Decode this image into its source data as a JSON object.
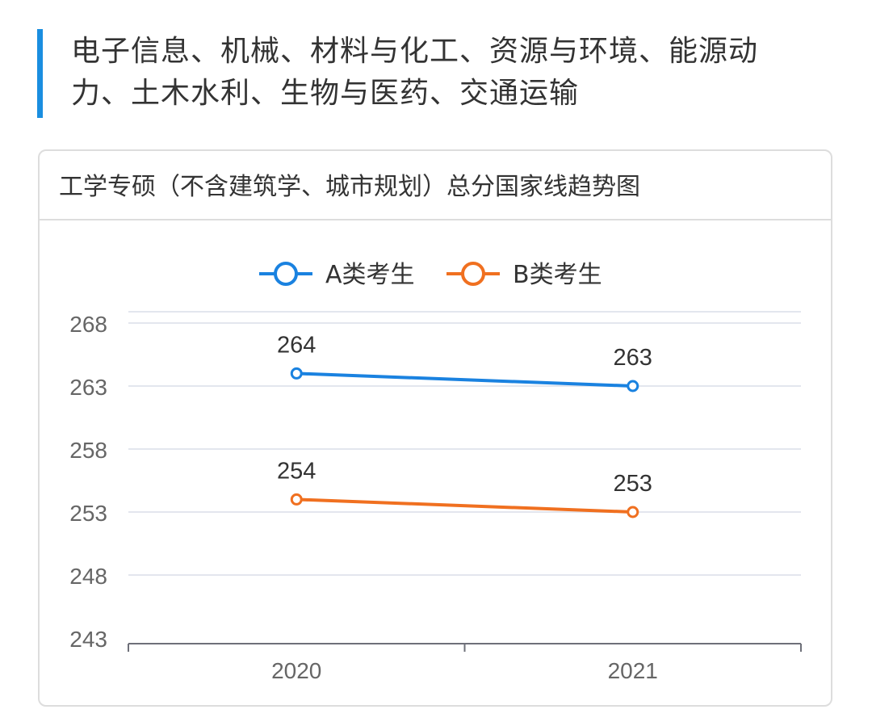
{
  "heading": {
    "text": "电子信息、机械、材料与化工、资源与环境、能源动力、土木水利、生物与医药、交通运输",
    "accent_color": "#1a8ee0"
  },
  "card": {
    "title": "工学专硕（不含建筑学、城市规划）总分国家线趋势图"
  },
  "chart_data": {
    "type": "line",
    "title": "工学专硕（不含建筑学、城市规划）总分国家线趋势图",
    "xlabel": "",
    "ylabel": "",
    "categories": [
      "2020",
      "2021"
    ],
    "series": [
      {
        "name": "A类考生",
        "values": [
          264,
          263
        ],
        "color": "#1a82e0"
      },
      {
        "name": "B类考生",
        "values": [
          254,
          253
        ],
        "color": "#f07020"
      }
    ],
    "ylim": [
      243,
      268
    ],
    "yticks": [
      243,
      248,
      253,
      258,
      263,
      268
    ],
    "grid": true,
    "legend": "top-center",
    "data_labels": true
  }
}
